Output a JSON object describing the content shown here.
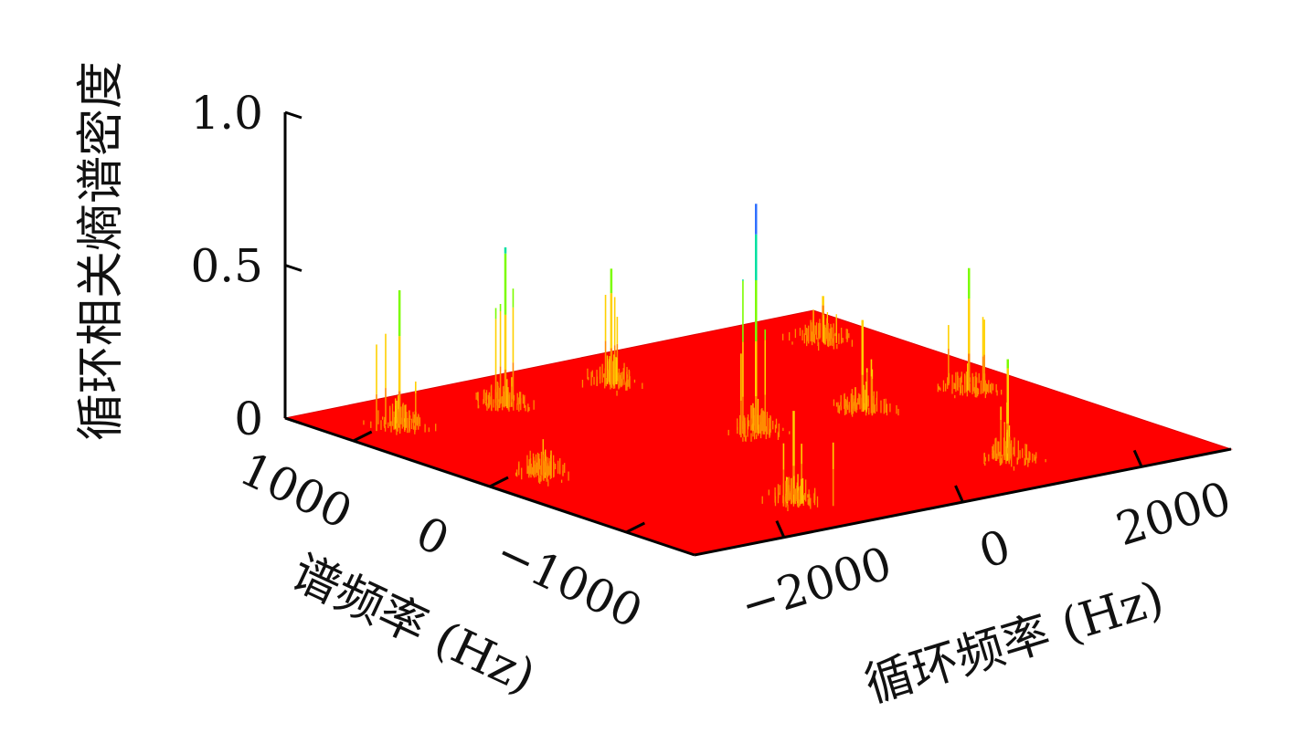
{
  "chart_data": {
    "type": "surface3d",
    "title": "",
    "zlabel": "循环相关熵谱密度",
    "ylabel": "谱频率 (Hz)",
    "xlabel": "循环频率 (Hz)",
    "z_ticks": [
      "0",
      "0.5",
      "1.0"
    ],
    "y_ticks": [
      "1000",
      "0",
      "−1000"
    ],
    "x_ticks": [
      "−2000",
      "0",
      "2000"
    ],
    "zlim": [
      0,
      1.0
    ],
    "ylim": [
      -1500,
      1500
    ],
    "xlim": [
      -3000,
      3000
    ],
    "surface_color": "#ff0000",
    "peak_colors": [
      "#ff8c00",
      "#ffd000",
      "#7cfc00",
      "#00e0a0",
      "#3070ff",
      "#c040ff"
    ],
    "peaks": [
      {
        "x": -2400,
        "y": 1050,
        "z": 0.45
      },
      {
        "x": -1200,
        "y": 1050,
        "z": 0.52
      },
      {
        "x": 0,
        "y": 1050,
        "z": 0.38
      },
      {
        "x": -2400,
        "y": 0,
        "z": 0.12
      },
      {
        "x": 0,
        "y": 0,
        "z": 0.75
      },
      {
        "x": 1200,
        "y": 0,
        "z": 0.3
      },
      {
        "x": 2400,
        "y": 0,
        "z": 0.4
      },
      {
        "x": -1200,
        "y": -1050,
        "z": 0.3
      },
      {
        "x": 1200,
        "y": -1050,
        "z": 0.33
      },
      {
        "x": 2400,
        "y": 1050,
        "z": 0.15
      }
    ]
  }
}
